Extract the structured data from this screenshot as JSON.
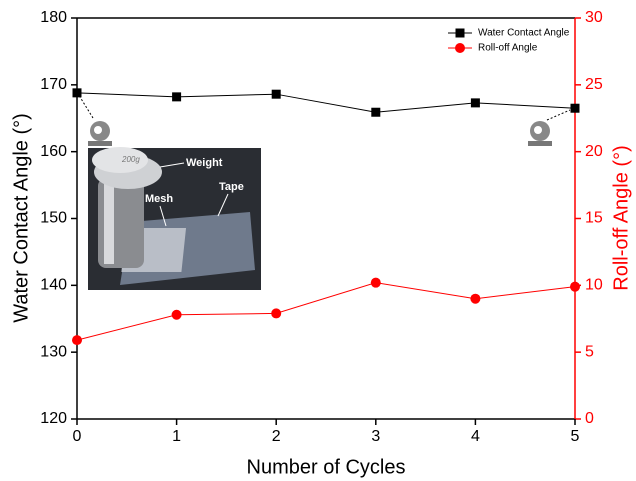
{
  "chart_data": {
    "type": "line",
    "x_label": "Number of Cycles",
    "y_label": "Water Contact Angle (°)",
    "y2_label": "Roll-off Angle (°)",
    "x": [
      0,
      1,
      2,
      3,
      4,
      5
    ],
    "xlim": [
      0,
      5
    ],
    "xticks": [
      0,
      1,
      2,
      3,
      4,
      5
    ],
    "ylim": [
      120,
      180
    ],
    "yticks": [
      120,
      130,
      140,
      150,
      160,
      170,
      180
    ],
    "y2lim": [
      0,
      30
    ],
    "y2ticks": [
      0,
      5,
      10,
      15,
      20,
      25,
      30
    ],
    "y2_color": "#ff0000",
    "legend": "upper right",
    "series": [
      {
        "name": "Water Contact Angle",
        "color": "#000000",
        "marker": "square",
        "values": [
          168.8,
          168.2,
          168.6,
          165.9,
          167.3,
          166.5
        ]
      },
      {
        "name": "Roll-off Angle",
        "color": "#ff0000",
        "marker": "circle",
        "axis": "y2",
        "values": [
          5.9,
          7.8,
          7.9,
          10.2,
          9.0,
          9.9
        ]
      }
    ],
    "inset_labels": {
      "weight": "Weight",
      "mass": "200g",
      "mesh": "Mesh",
      "tape": "Tape"
    }
  }
}
